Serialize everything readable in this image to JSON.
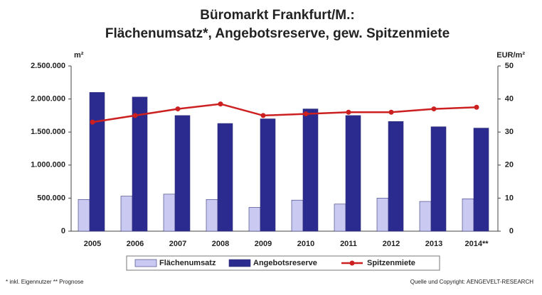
{
  "chart_data": {
    "type": "bar_line",
    "title": "Büromarkt Frankfurt/M.:",
    "subtitle": "Flächenumsatz*, Angebotsreserve, gew. Spitzenmiete",
    "y_axis_label": "m²",
    "y2_axis_label": "EUR/m²",
    "categories": [
      "2005",
      "2006",
      "2007",
      "2008",
      "2009",
      "2010",
      "2011",
      "2012",
      "2013",
      "2014**"
    ],
    "series": [
      {
        "name": "Flächenumsatz",
        "color": "#c9c9f2",
        "values": [
          480000,
          530000,
          560000,
          480000,
          360000,
          470000,
          410000,
          500000,
          450000,
          490000
        ]
      },
      {
        "name": "Angebotsreserve",
        "color": "#2b2b8f",
        "values": [
          2100000,
          2030000,
          1750000,
          1630000,
          1700000,
          1850000,
          1750000,
          1660000,
          1580000,
          1560000
        ]
      },
      {
        "name": "Spitzenmiete",
        "color": "#cc2020",
        "axis": "y2",
        "values": [
          33,
          35,
          37,
          38.5,
          35,
          35.5,
          36,
          36,
          37,
          37.5
        ]
      }
    ],
    "ylim": [
      0,
      2500000
    ],
    "yticks": [
      0,
      {
        "value": 500000,
        "label": "500.000"
      },
      {
        "value": 1000000,
        "label": "1.000.000"
      },
      {
        "value": 1500000,
        "label": "1.500.000"
      },
      {
        "value": 2000000,
        "label": "2.000.000"
      },
      {
        "value": 2500000,
        "label": "2.500.000"
      }
    ],
    "y2lim": [
      0,
      50
    ],
    "y2ticks": [
      0,
      10,
      20,
      30,
      40,
      50
    ],
    "footnote": "* inkl. Eigennutzer   ** Prognose",
    "source": "Quelle und Copyright: AENGEVELT-RESEARCH"
  }
}
